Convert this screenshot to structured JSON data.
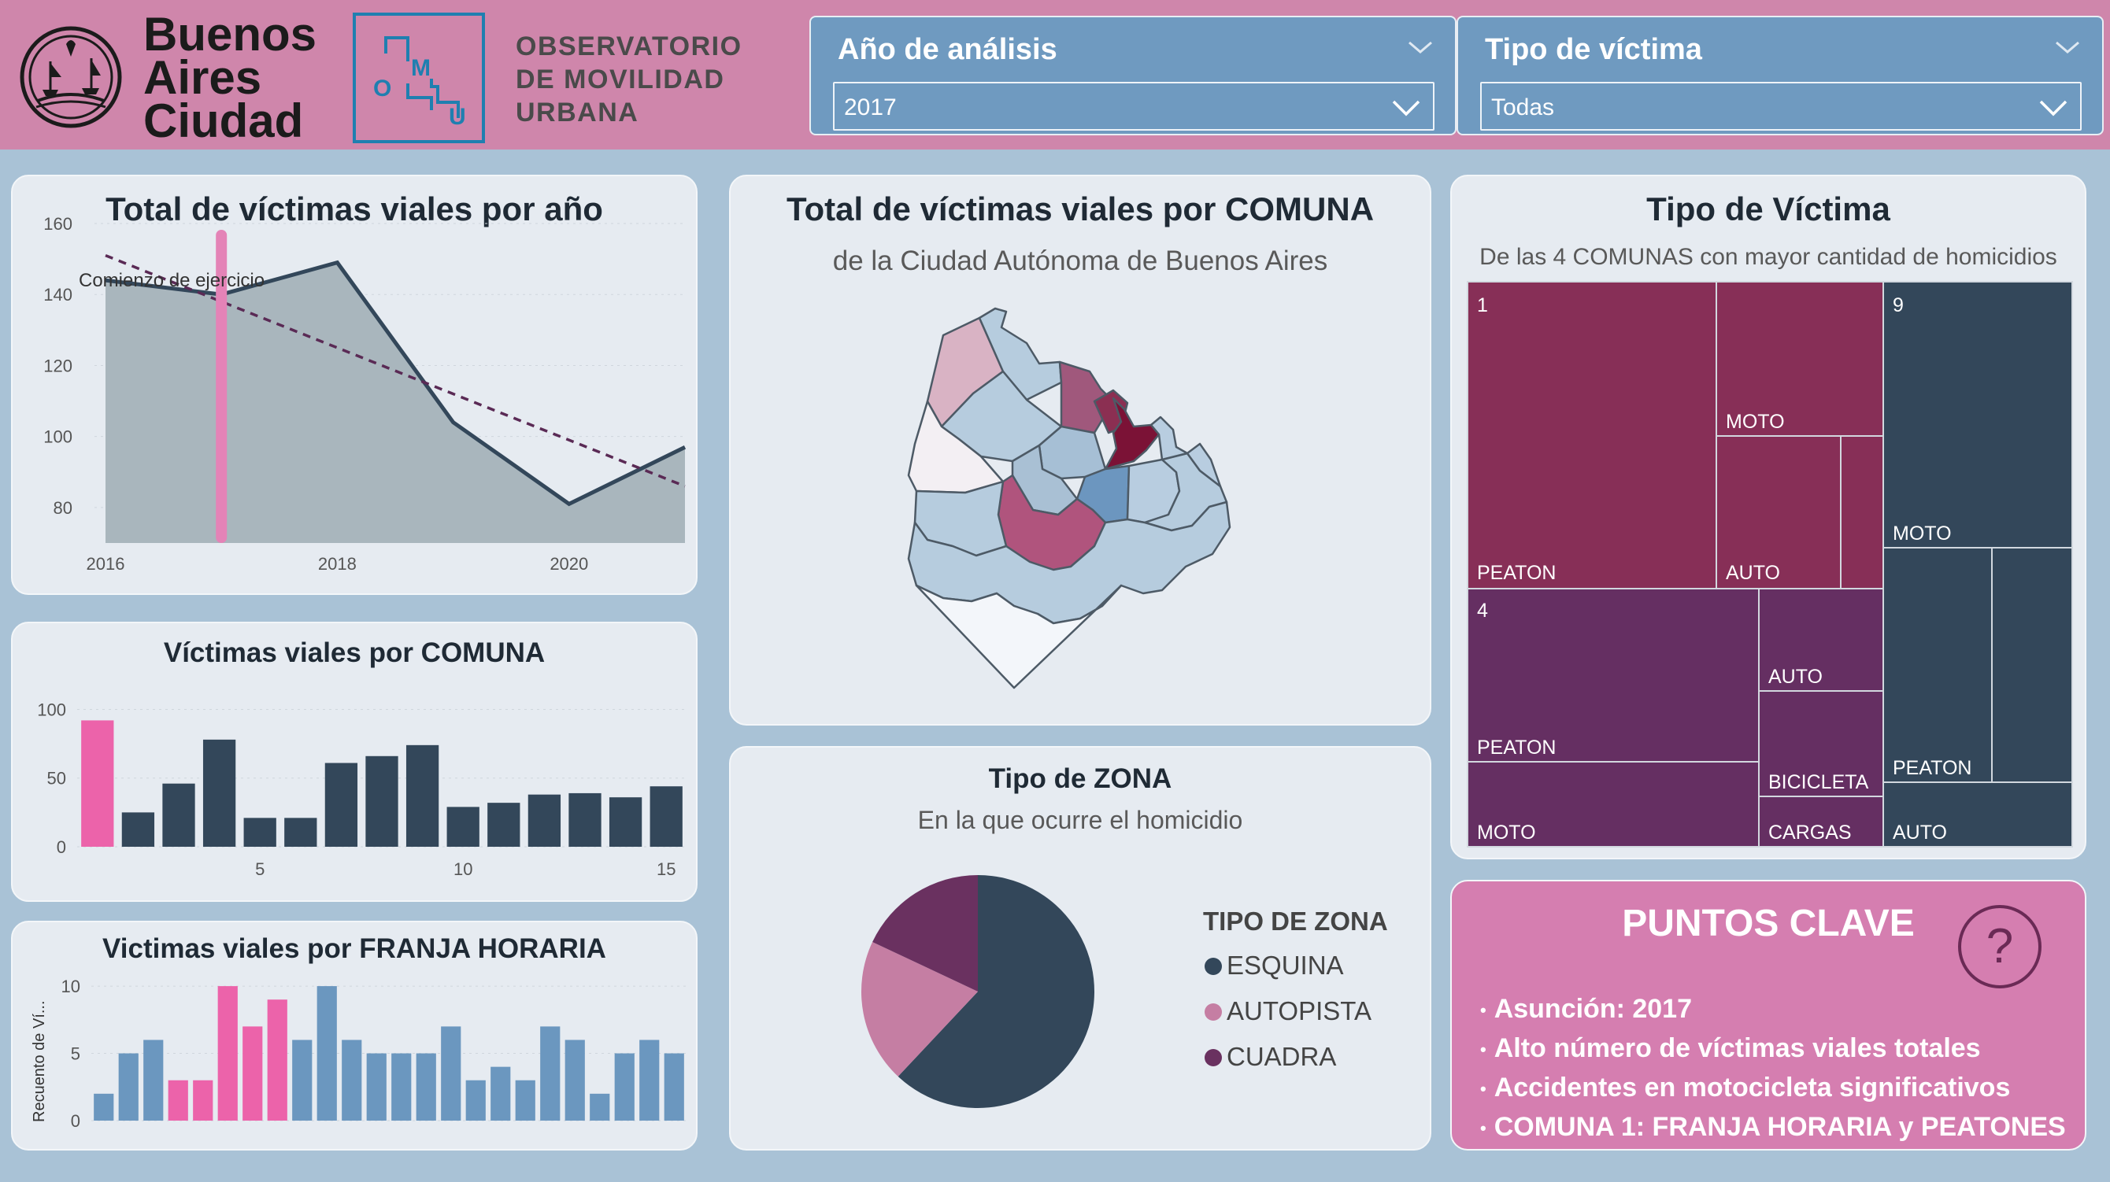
{
  "header": {
    "brand_lines": [
      "Buenos",
      "Aires",
      "Ciudad"
    ],
    "observatory_lines": [
      "OBSERVATORIO",
      "DE MOVILIDAD",
      "URBANA"
    ],
    "omu_letters": [
      "O",
      "M",
      "U"
    ],
    "slicers": [
      {
        "title": "Año de análisis",
        "value": "2017"
      },
      {
        "title": "Tipo de víctima",
        "value": "Todas"
      }
    ]
  },
  "colors": {
    "header_bg": "#cf86ab",
    "page_bg": "#a9c2d6",
    "card_bg": "#e6ebf1",
    "dark": "#33475a",
    "pink": "#ec63aa",
    "steel": "#6b97bf",
    "mauve": "#c57ea3",
    "plum": "#6a3160",
    "wine": "#8a2f58"
  },
  "year_chart": {
    "title": "Total de víctimas viales por año",
    "annotation": "Comienzo de ejercicio",
    "chart_data": {
      "type": "area",
      "x": [
        2016,
        2017,
        2018,
        2019,
        2020,
        2021
      ],
      "values": [
        144,
        140,
        149,
        104,
        81,
        97
      ],
      "trend": [
        151,
        86
      ],
      "highlight_x": 2017,
      "ylim": [
        70,
        160
      ],
      "yticks": [
        80,
        100,
        120,
        140,
        160
      ],
      "xticks": [
        2016,
        2018,
        2020
      ]
    }
  },
  "comuna_bar": {
    "title": "Víctimas viales por COMUNA",
    "chart_data": {
      "type": "bar",
      "categories": [
        1,
        2,
        3,
        4,
        5,
        6,
        7,
        8,
        9,
        10,
        11,
        12,
        13,
        14,
        15
      ],
      "values": [
        92,
        25,
        46,
        78,
        21,
        21,
        61,
        66,
        74,
        29,
        32,
        38,
        39,
        36,
        44
      ],
      "highlight_index": 0,
      "ylim": [
        0,
        110
      ],
      "yticks": [
        0,
        50,
        100
      ],
      "xticks": [
        5,
        10,
        15
      ]
    }
  },
  "franja_bar": {
    "title": "Victimas viales por FRANJA HORARIA",
    "ylabel": "Recuento de Ví...",
    "chart_data": {
      "type": "bar",
      "categories": [
        0,
        1,
        2,
        3,
        4,
        5,
        6,
        7,
        8,
        9,
        10,
        11,
        12,
        13,
        14,
        15,
        16,
        17,
        18,
        19,
        20,
        21,
        22,
        23
      ],
      "values": [
        2,
        5,
        6,
        3,
        3,
        10,
        7,
        9,
        6,
        10,
        6,
        5,
        5,
        5,
        7,
        3,
        4,
        3,
        7,
        6,
        2,
        5,
        6,
        5
      ],
      "highlight_indices": [
        3,
        4,
        5,
        6,
        7
      ],
      "ylim": [
        0,
        11
      ],
      "yticks": [
        0,
        5,
        10
      ]
    }
  },
  "map": {
    "title": "Total de víctimas viales por COMUNA",
    "subtitle": "de la Ciudad Autónoma de Buenos Aires"
  },
  "zona_pie": {
    "title": "Tipo de ZONA",
    "subtitle": "En la que ocurre el homicidio",
    "legend_title": "TIPO DE ZONA",
    "chart_data": {
      "type": "pie",
      "labels": [
        "ESQUINA",
        "AUTOPISTA",
        "CUADRA"
      ],
      "values": [
        62,
        20,
        18
      ],
      "colors": [
        "#33475a",
        "#c57ea3",
        "#6a3160"
      ]
    }
  },
  "treemap": {
    "title": "Tipo de Víctima",
    "subtitle": "De las 4 COMUNAS con mayor cantidad de homicidios",
    "chart_data": {
      "type": "treemap",
      "groups": [
        {
          "name": "1",
          "labels": [
            "PEATON",
            "MOTO",
            "AUTO"
          ]
        },
        {
          "name": "9",
          "labels": [
            "MOTO",
            "PEATON",
            "AUTO"
          ]
        },
        {
          "name": "4",
          "labels": [
            "PEATON",
            "MOTO",
            "AUTO",
            "BICICLETA",
            "CARGAS"
          ]
        }
      ]
    }
  },
  "puntos_clave": {
    "title": "PUNTOS CLAVE",
    "help_glyph": "?",
    "bullet": "•",
    "items": [
      "Asunción: 2017",
      "Alto número de víctimas viales totales",
      "Accidentes en motocicleta significativos",
      "COMUNA 1: FRANJA HORARIA y PEATONES"
    ]
  }
}
